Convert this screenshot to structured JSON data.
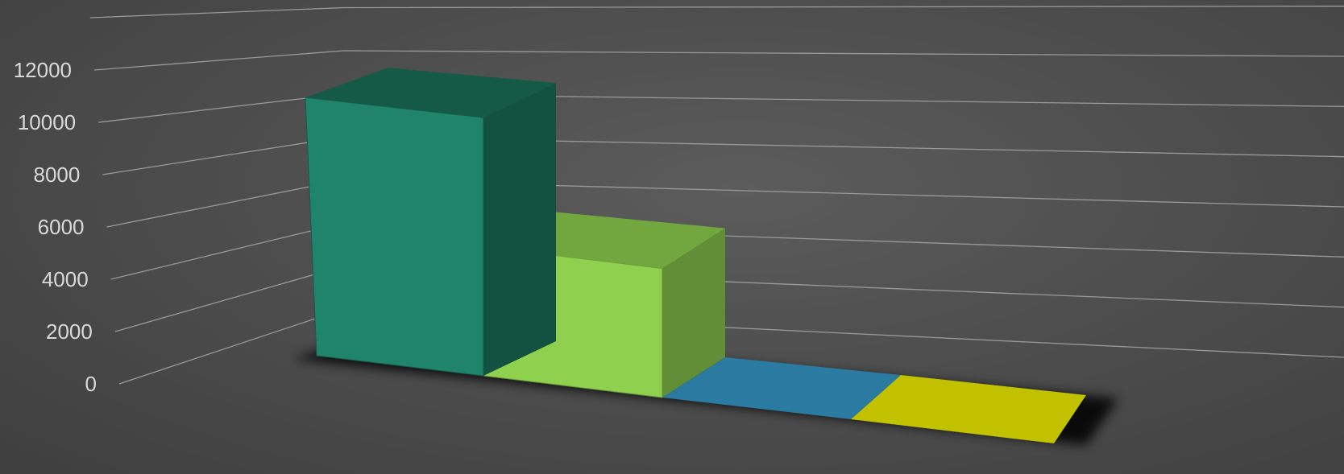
{
  "chart_data": {
    "type": "bar",
    "variant": "3d-column",
    "title": "",
    "xlabel": "",
    "ylabel": "",
    "categories": [
      "",
      "",
      "",
      ""
    ],
    "values": [
      10000,
      5000,
      0,
      0
    ],
    "colors": [
      "#1f8469",
      "#8fd14f",
      "#2a7aa2",
      "#c2c100"
    ],
    "ylim": [
      0,
      12000
    ],
    "yticks": [
      "0",
      "2000",
      "4000",
      "6000",
      "8000",
      "10000",
      "12000"
    ],
    "grid": true,
    "legend": "none",
    "background": "#4f4f4f"
  }
}
